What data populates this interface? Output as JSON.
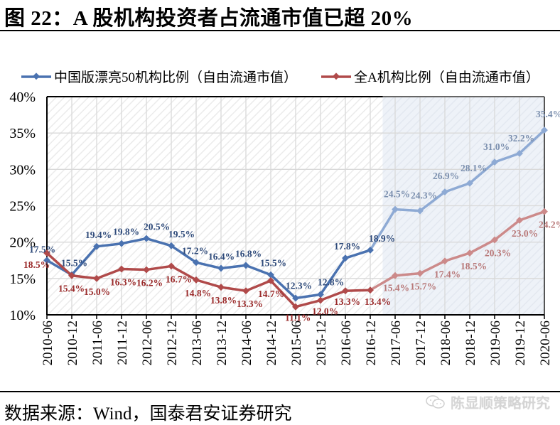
{
  "header": {
    "title": "图 22：A 股机构投资者占流通市值已超 20%"
  },
  "footer": {
    "source": "数据来源：Wind，国泰君安证券研究",
    "watermark": "陈显顺策略研究",
    "watermark_icon": "wechat-icon"
  },
  "colors": {
    "series1": "#4a72b0",
    "series1_light": "#8eaad4",
    "series1_label": "#2e4a7a",
    "series1_label_light": "#7b8fae",
    "series2": "#b04a4a",
    "series2_light": "#cc8a8a",
    "series2_label": "#9a2a2a",
    "series2_label_light": "#b87878",
    "grid": "#d9d9d9",
    "hatch": "#ececec",
    "shade": "#eef2f8"
  },
  "chart_data": {
    "type": "line",
    "title": "A 股机构投资者占流通市值已超 20%",
    "xlabel": "",
    "ylabel": "",
    "ylim": [
      0.1,
      0.4
    ],
    "yticks": [
      "10%",
      "15%",
      "20%",
      "25%",
      "30%",
      "35%",
      "40%"
    ],
    "grid": true,
    "legend_position": "top",
    "categories": [
      "2010-06",
      "2010-12",
      "2011-06",
      "2011-12",
      "2012-06",
      "2012-12",
      "2013-06",
      "2013-12",
      "2014-06",
      "2014-12",
      "2015-06",
      "2015-12",
      "2016-06",
      "2016-12",
      "2017-06",
      "2017-12",
      "2018-06",
      "2018-12",
      "2019-06",
      "2019-12",
      "2020-06"
    ],
    "series": [
      {
        "name": "中国版漂亮50机构比例（自由流通市值）",
        "values": [
          17.5,
          15.5,
          19.4,
          19.8,
          20.5,
          19.5,
          17.2,
          16.4,
          16.8,
          15.5,
          12.3,
          12.8,
          17.8,
          18.9,
          24.5,
          24.3,
          26.9,
          28.1,
          31.0,
          32.2,
          35.4
        ],
        "labels": [
          "17.5%",
          "15.5%",
          "19.4%",
          "19.8%",
          "20.5%",
          "19.5%",
          "17.2%",
          "16.4%",
          "16.8%",
          "15.5%",
          "12.3%",
          "12.8%",
          "17.8%",
          "18.9%",
          "24.5%",
          "24.3%",
          "26.9%",
          "28.1%",
          "31.0%",
          "32.2%",
          "35.4%"
        ]
      },
      {
        "name": "全A机构比例（自由流通市值）",
        "values": [
          18.5,
          15.4,
          15.0,
          16.3,
          16.2,
          16.7,
          14.8,
          13.8,
          13.3,
          14.7,
          11.1,
          12.0,
          13.3,
          13.4,
          15.4,
          15.7,
          17.4,
          18.5,
          20.3,
          23.0,
          24.2
        ],
        "labels": [
          "18.5%",
          "15.4%",
          "15.0%",
          "16.3%",
          "16.2%",
          "16.7%",
          "14.8%",
          "13.8%",
          "13.3%",
          "14.7%",
          "11.1%",
          "12.0%",
          "13.3%",
          "13.4%",
          "15.4%",
          "15.7%",
          "17.4%",
          "18.5%",
          "20.3%",
          "23.0%",
          "24.2%"
        ]
      }
    ],
    "annotations": [
      {
        "type": "shaded_region",
        "from": "2016-12/2017-06 midpoint",
        "to": "2020-06",
        "note": "lighter shaded / projected period"
      }
    ]
  }
}
